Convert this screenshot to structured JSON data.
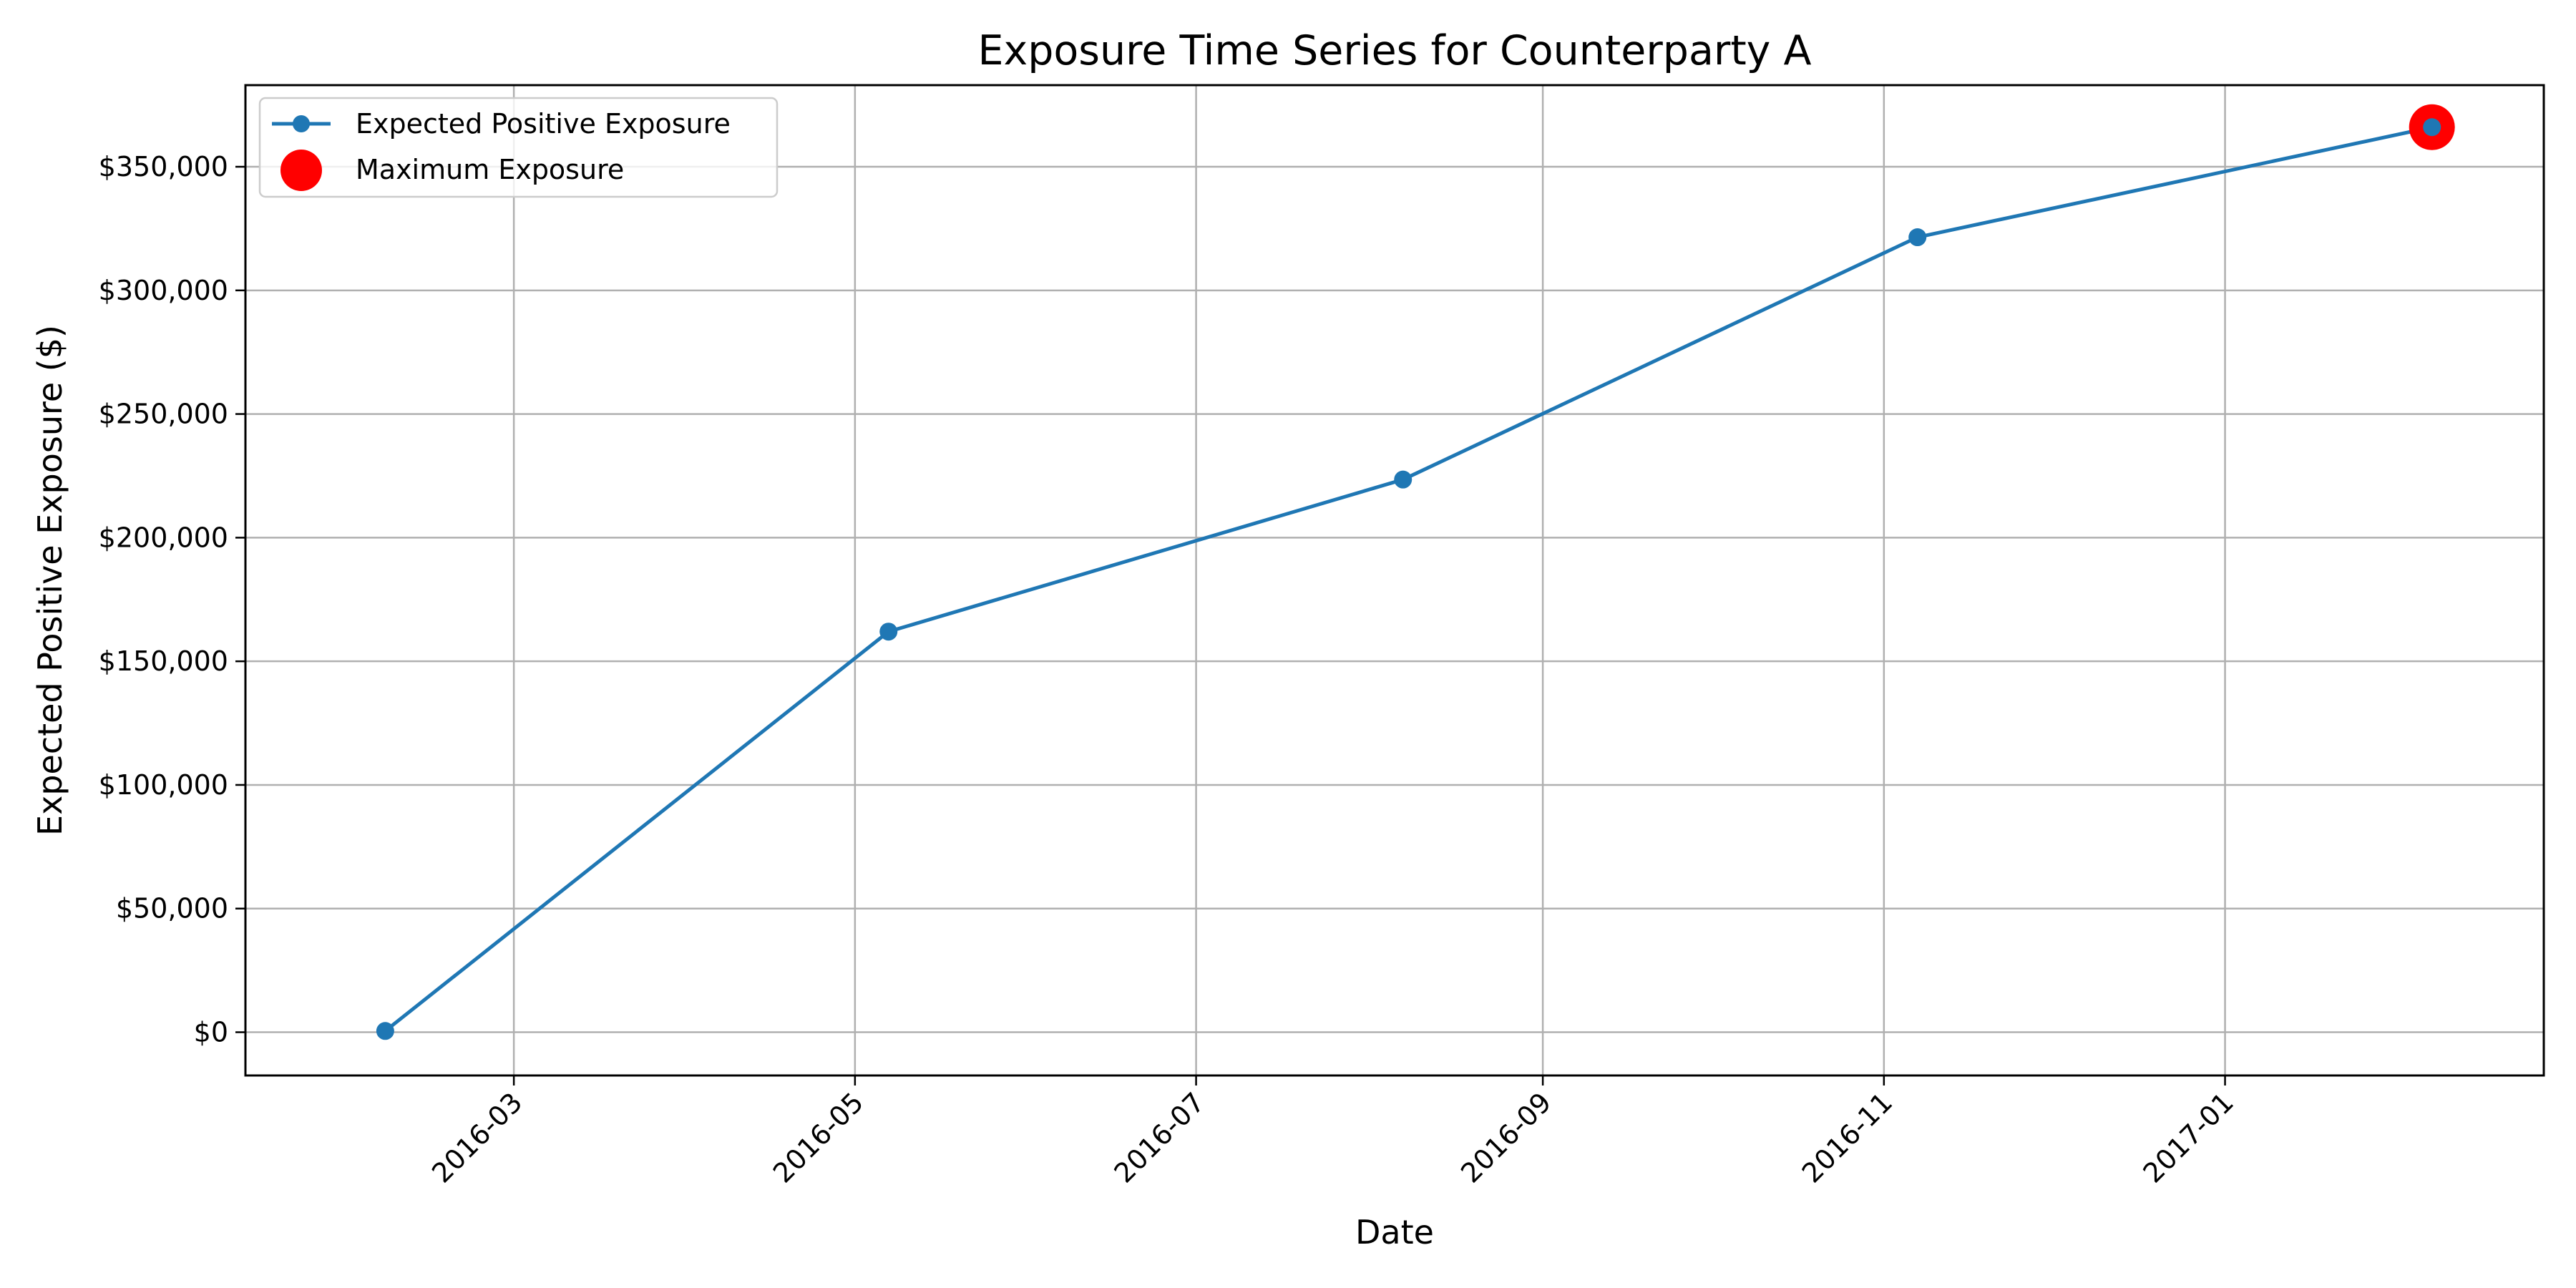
{
  "chart_data": {
    "type": "line",
    "title": "Exposure Time Series for Counterparty A",
    "xlabel": "Date",
    "ylabel": "Expected Positive Exposure ($)",
    "x_type": "date",
    "xlim": [
      "2016-01-13",
      "2017-02-27"
    ],
    "ylim": [
      -17500,
      383000
    ],
    "x_ticks": [
      "2016-03-01",
      "2016-05-01",
      "2016-07-01",
      "2016-09-01",
      "2016-11-01",
      "2017-01-01"
    ],
    "x_tick_labels": [
      "2016-03",
      "2016-05",
      "2016-07",
      "2016-09",
      "2016-11",
      "2017-01"
    ],
    "y_ticks": [
      0,
      50000,
      100000,
      150000,
      200000,
      250000,
      300000,
      350000
    ],
    "y_tick_labels": [
      "$0",
      "$50,000",
      "$100,000",
      "$150,000",
      "$200,000",
      "$250,000",
      "$300,000",
      "$350,000"
    ],
    "grid": true,
    "legend_position": "top-left",
    "series": [
      {
        "name": "Expected Positive Exposure",
        "style": "line-with-markers",
        "color": "#1f77b4",
        "x": [
          "2016-02-07",
          "2016-05-07",
          "2016-08-07",
          "2016-11-07",
          "2017-02-07"
        ],
        "values": [
          500,
          162000,
          223500,
          321500,
          366000
        ]
      },
      {
        "name": "Maximum Exposure",
        "style": "large-point",
        "color": "#ff0000",
        "x": [
          "2017-02-07"
        ],
        "values": [
          366000
        ]
      }
    ]
  }
}
